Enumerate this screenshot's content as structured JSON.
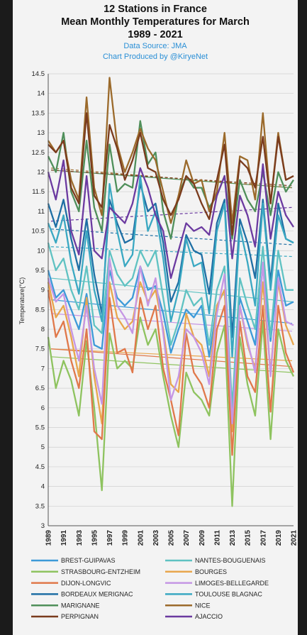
{
  "chart_data": {
    "type": "line",
    "title": "12 Stations in France",
    "subtitle_lines": [
      "Mean Monthly Temperatures for March",
      "1989 - 2021"
    ],
    "source": "Data Source: JMA",
    "credit": "Chart Produced by @KiryeNet",
    "ylabel": "Temperature(°C)",
    "xlabel": "",
    "ylim": [
      3,
      14.5
    ],
    "ytick_step": 0.5,
    "x": [
      1989,
      1990,
      1991,
      1992,
      1993,
      1994,
      1995,
      1996,
      1997,
      1998,
      1999,
      2000,
      2001,
      2002,
      2003,
      2004,
      2005,
      2006,
      2007,
      2008,
      2009,
      2010,
      2011,
      2012,
      2013,
      2014,
      2015,
      2016,
      2017,
      2018,
      2019,
      2020,
      2021
    ],
    "x_tick_labels": [
      "1989",
      "1991",
      "1993",
      "1995",
      "1997",
      "1999",
      "2001",
      "2003",
      "2005",
      "2007",
      "2009",
      "2011",
      "2013",
      "2015",
      "2017",
      "2019",
      "2021"
    ],
    "grid": "horizontal",
    "legend_position": "bottom",
    "series": [
      {
        "name": "BREST-GUIPAVAS",
        "color": "#3d9ad8",
        "values": [
          9.5,
          8.8,
          9.0,
          8.5,
          8.0,
          8.9,
          7.6,
          7.5,
          9.5,
          8.8,
          8.6,
          8.8,
          9.6,
          9.0,
          9.1,
          8.4,
          7.4,
          8.0,
          8.5,
          8.3,
          8.6,
          7.3,
          8.6,
          9.0,
          6.0,
          8.8,
          8.2,
          7.6,
          9.6,
          7.7,
          9.5,
          8.6,
          8.7
        ],
        "trend": [
          8.75,
          8.15
        ]
      },
      {
        "name": "NANTES-BOUGUENAIS",
        "color": "#5fc2c2",
        "values": [
          10.2,
          9.5,
          9.8,
          9.0,
          8.5,
          9.6,
          8.1,
          7.9,
          10.0,
          9.4,
          9.1,
          9.3,
          10.0,
          9.6,
          10.0,
          8.8,
          7.6,
          8.2,
          9.0,
          8.6,
          8.8,
          7.6,
          9.0,
          9.6,
          6.0,
          9.3,
          8.6,
          8.0,
          10.1,
          7.8,
          10.0,
          9.0,
          9.0
        ],
        "trend": [
          9.3,
          8.7
        ]
      },
      {
        "name": "STRASBOURG-ENTZHEIM",
        "color": "#8ec35f",
        "values": [
          7.8,
          6.5,
          7.2,
          6.7,
          5.8,
          7.7,
          6.0,
          3.9,
          7.9,
          7.0,
          7.2,
          7.0,
          8.3,
          7.6,
          8.0,
          6.8,
          5.8,
          5.0,
          6.9,
          6.4,
          6.2,
          5.8,
          7.4,
          8.1,
          3.5,
          7.8,
          6.6,
          5.8,
          8.2,
          5.2,
          8.0,
          7.2,
          6.8
        ],
        "trend": [
          7.3,
          6.9
        ]
      },
      {
        "name": "BOURGES",
        "color": "#e8a64c",
        "values": [
          9.2,
          8.3,
          8.6,
          7.8,
          6.8,
          8.8,
          6.8,
          5.6,
          9.2,
          8.3,
          8.0,
          8.2,
          9.2,
          8.7,
          9.0,
          8.0,
          6.6,
          6.4,
          8.4,
          7.8,
          7.6,
          6.8,
          8.6,
          9.0,
          5.4,
          8.6,
          7.6,
          7.0,
          9.2,
          6.9,
          9.2,
          8.1,
          7.6
        ],
        "trend": [
          7.5,
          7.2
        ]
      },
      {
        "name": "DIJON-LONGVIC",
        "color": "#e0784a",
        "values": [
          9.0,
          7.8,
          8.2,
          7.2,
          6.5,
          8.0,
          5.4,
          5.2,
          8.8,
          7.4,
          7.5,
          6.9,
          8.8,
          8.0,
          8.6,
          7.0,
          6.2,
          5.3,
          7.9,
          6.9,
          6.6,
          6.0,
          8.0,
          8.6,
          4.8,
          8.2,
          6.8,
          6.4,
          8.6,
          5.9,
          8.6,
          7.4,
          6.9
        ],
        "trend": [
          7.5,
          7.05
        ]
      },
      {
        "name": "LIMOGES-BELLEGARDE",
        "color": "#c596e4",
        "values": [
          9.3,
          8.7,
          8.9,
          8.0,
          7.2,
          8.6,
          7.0,
          6.1,
          9.8,
          8.6,
          8.3,
          7.9,
          9.6,
          8.6,
          9.3,
          7.9,
          6.2,
          6.8,
          8.0,
          7.8,
          7.4,
          6.6,
          8.4,
          9.4,
          5.6,
          8.6,
          7.7,
          6.9,
          9.7,
          6.8,
          9.3,
          8.2,
          8.1
        ],
        "trend": [
          8.4,
          7.95
        ]
      },
      {
        "name": "BORDEAUX MERIGNAC",
        "color": "#1f6fa4",
        "values": [
          11.2,
          10.6,
          11.3,
          10.3,
          9.5,
          10.8,
          9.4,
          8.4,
          11.3,
          10.7,
          10.2,
          10.3,
          11.7,
          11.0,
          11.2,
          10.2,
          8.7,
          9.2,
          10.4,
          10.0,
          9.9,
          8.9,
          10.7,
          11.3,
          7.8,
          10.8,
          10.2,
          9.3,
          11.3,
          9.2,
          11.2,
          10.3,
          10.2
        ],
        "trend": [
          10.55,
          10.15
        ]
      },
      {
        "name": "TOULOUSE BLAGNAC",
        "color": "#3aa8c2",
        "values": [
          10.7,
          10.2,
          10.9,
          9.7,
          8.9,
          10.5,
          9.0,
          8.2,
          11.7,
          10.5,
          9.6,
          9.9,
          11.9,
          10.5,
          11.0,
          9.8,
          8.2,
          9.0,
          10.3,
          9.6,
          9.7,
          8.4,
          10.5,
          11.2,
          7.3,
          10.6,
          9.7,
          8.6,
          11.2,
          9.0,
          10.9,
          10.3,
          10.2
        ],
        "trend": [
          10.1,
          9.85
        ]
      },
      {
        "name": "MARIGNANE",
        "color": "#4f8f5a",
        "values": [
          12.4,
          12.0,
          13.0,
          11.5,
          11.0,
          12.8,
          11.1,
          10.5,
          12.7,
          11.5,
          11.7,
          11.6,
          13.3,
          12.2,
          12.5,
          11.0,
          10.3,
          11.4,
          11.9,
          11.6,
          11.6,
          11.1,
          11.4,
          11.9,
          10.3,
          11.8,
          11.3,
          11.0,
          12.0,
          10.9,
          12.0,
          11.5,
          11.8
        ],
        "trend": [
          12.05,
          11.6
        ]
      },
      {
        "name": "NICE",
        "color": "#9b6a2b",
        "values": [
          12.8,
          12.5,
          12.8,
          11.8,
          11.3,
          13.9,
          11.6,
          10.9,
          14.4,
          12.7,
          12.0,
          12.5,
          13.1,
          12.6,
          12.3,
          11.5,
          10.7,
          11.4,
          12.3,
          11.7,
          11.8,
          11.0,
          11.5,
          13.0,
          10.7,
          12.4,
          12.3,
          11.3,
          13.5,
          11.2,
          13.0,
          11.8,
          11.9
        ],
        "trend": [
          12.1,
          11.6
        ]
      },
      {
        "name": "PERPIGNAN",
        "color": "#7a3b1d",
        "values": [
          12.7,
          12.5,
          12.8,
          11.6,
          11.2,
          13.5,
          11.4,
          11.1,
          13.2,
          12.6,
          11.8,
          12.3,
          13.0,
          12.1,
          12.0,
          11.3,
          10.9,
          11.3,
          11.9,
          11.7,
          11.2,
          10.8,
          11.8,
          12.7,
          10.4,
          12.3,
          12.1,
          11.6,
          12.9,
          11.2,
          12.9,
          11.8,
          11.9
        ],
        "trend": [
          12.05,
          11.65
        ]
      },
      {
        "name": "AJACCIO",
        "color": "#6b3aa0",
        "values": [
          12.0,
          11.3,
          12.3,
          10.5,
          9.9,
          11.9,
          10.0,
          9.8,
          11.1,
          10.9,
          10.7,
          11.2,
          12.1,
          11.6,
          10.9,
          10.5,
          9.3,
          10.0,
          10.7,
          10.5,
          10.6,
          10.4,
          11.4,
          11.9,
          9.8,
          11.4,
          10.9,
          10.1,
          12.2,
          10.3,
          11.5,
          10.9,
          10.6
        ],
        "trend": [
          10.75,
          11.1
        ]
      }
    ]
  }
}
